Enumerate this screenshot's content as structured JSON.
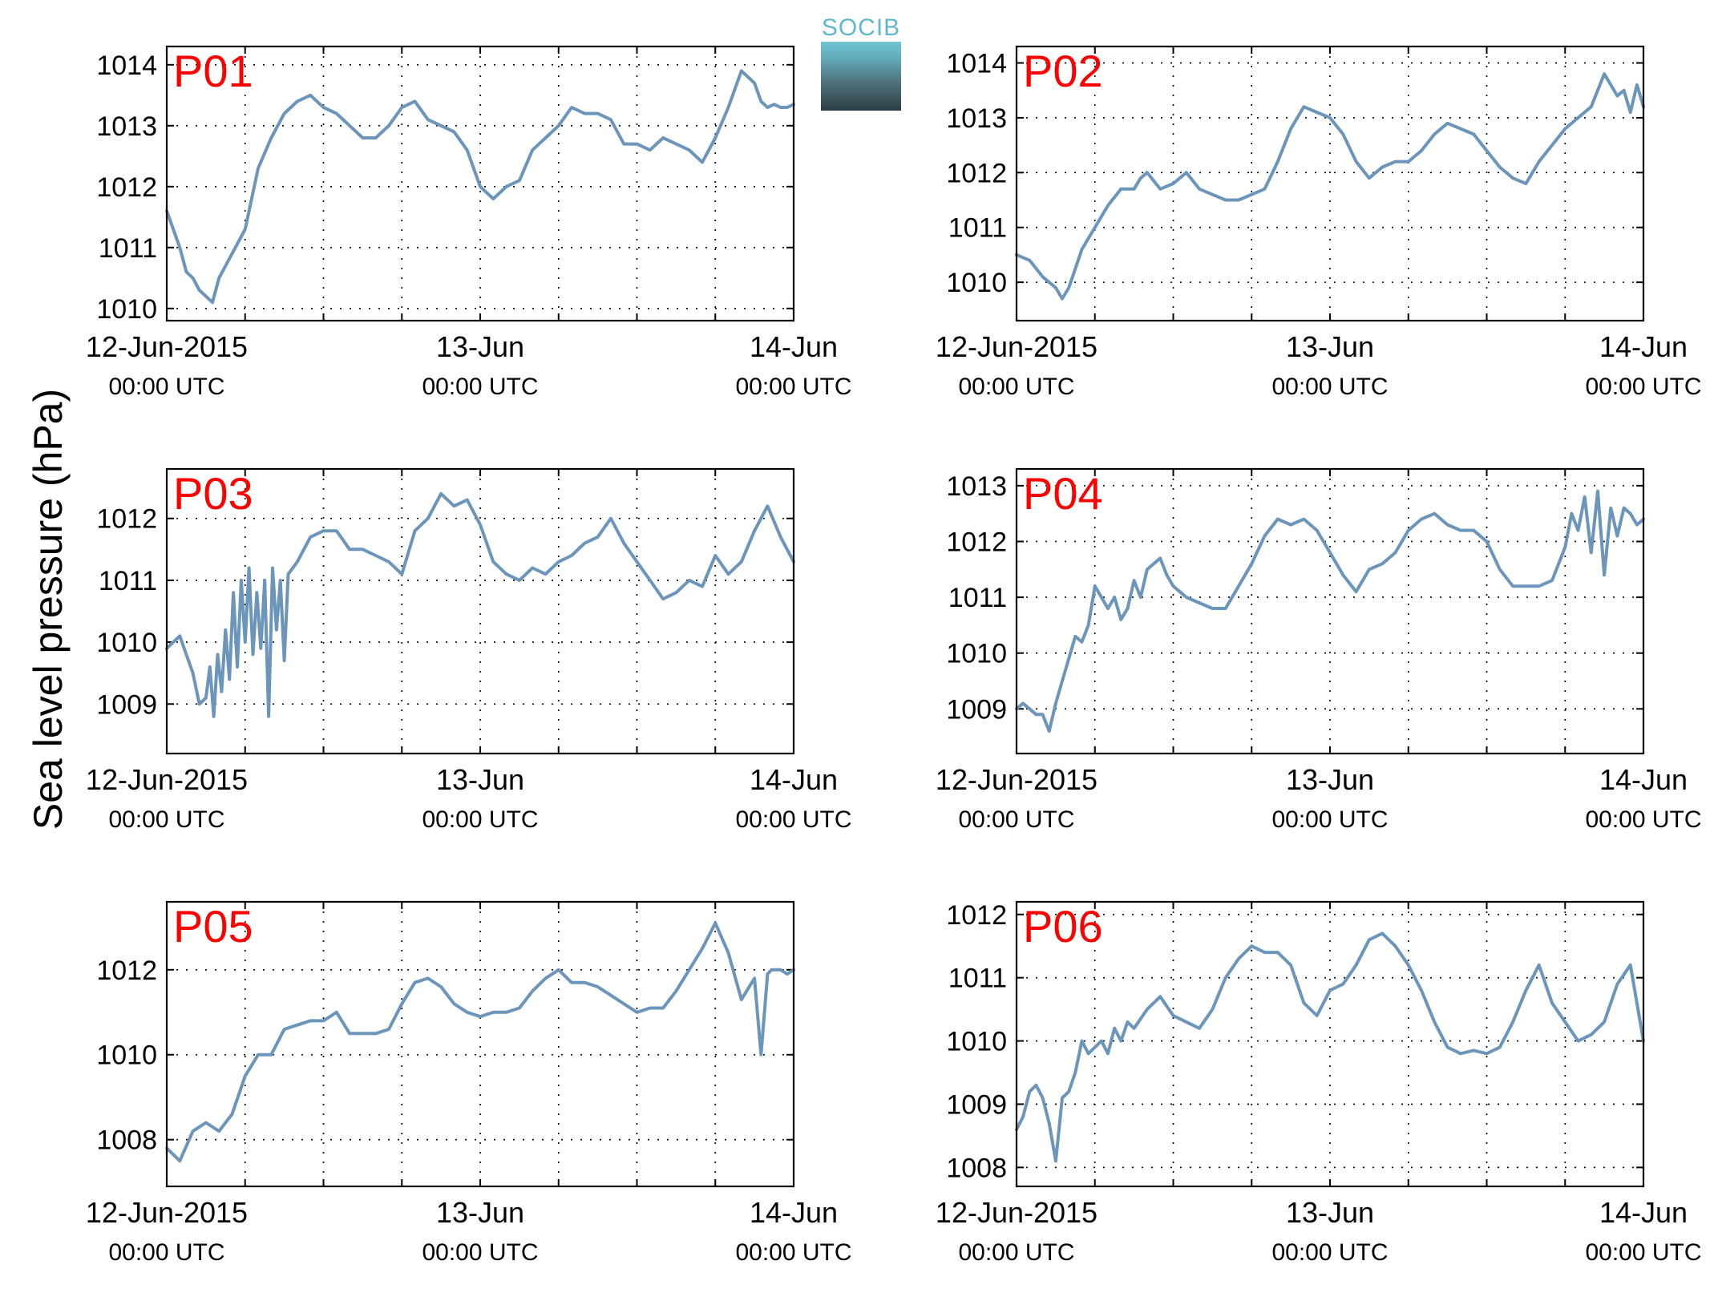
{
  "figure": {
    "ylabel": "Sea level pressure (hPa)",
    "logo_text": "SOCIB",
    "colors": {
      "line": "#6b95ba",
      "panel_label": "#ff0000",
      "grid": "#000000"
    }
  },
  "chart_data": [
    {
      "type": "line",
      "label": "P01",
      "xlim": [
        0,
        48
      ],
      "ylim": [
        1009.8,
        1014.3
      ],
      "yticks": [
        1010,
        1011,
        1012,
        1013,
        1014
      ],
      "xticks": [
        0,
        24,
        48
      ],
      "xtick_labels": [
        [
          "12-Jun-2015",
          "00:00 UTC"
        ],
        [
          "13-Jun",
          "00:00 UTC"
        ],
        [
          "14-Jun",
          "00:00 UTC"
        ]
      ],
      "grid": true,
      "series": [
        {
          "x": [
            0,
            1,
            1.5,
            2,
            2.5,
            3,
            3.5,
            4,
            5,
            6,
            7,
            8,
            9,
            10,
            11,
            12,
            13,
            14,
            15,
            16,
            17,
            18,
            19,
            20,
            21,
            22,
            23,
            24,
            25,
            26,
            27,
            28,
            29,
            30,
            31,
            32,
            33,
            34,
            35,
            36,
            37,
            38,
            39,
            40,
            41,
            42,
            43,
            44,
            45,
            45.5,
            46,
            46.5,
            47,
            47.5,
            48
          ],
          "y": [
            1011.6,
            1011.0,
            1010.6,
            1010.5,
            1010.3,
            1010.2,
            1010.1,
            1010.5,
            1010.9,
            1011.3,
            1012.3,
            1012.8,
            1013.2,
            1013.4,
            1013.5,
            1013.3,
            1013.2,
            1013.0,
            1012.8,
            1012.8,
            1013.0,
            1013.3,
            1013.4,
            1013.1,
            1013.0,
            1012.9,
            1012.6,
            1012.0,
            1011.8,
            1012.0,
            1012.1,
            1012.6,
            1012.8,
            1013.0,
            1013.3,
            1013.2,
            1013.2,
            1013.1,
            1012.7,
            1012.7,
            1012.6,
            1012.8,
            1012.7,
            1012.6,
            1012.4,
            1012.8,
            1013.3,
            1013.9,
            1013.7,
            1013.4,
            1013.3,
            1013.35,
            1013.3,
            1013.3,
            1013.35
          ]
        }
      ]
    },
    {
      "type": "line",
      "label": "P02",
      "xlim": [
        0,
        48
      ],
      "ylim": [
        1009.3,
        1014.3
      ],
      "yticks": [
        1010,
        1011,
        1012,
        1013,
        1014
      ],
      "xticks": [
        0,
        24,
        48
      ],
      "xtick_labels": [
        [
          "12-Jun-2015",
          "00:00 UTC"
        ],
        [
          "13-Jun",
          "00:00 UTC"
        ],
        [
          "14-Jun",
          "00:00 UTC"
        ]
      ],
      "grid": true,
      "series": [
        {
          "x": [
            0,
            1,
            2,
            3,
            3.5,
            4,
            5,
            6,
            7,
            8,
            9,
            9.5,
            10,
            11,
            12,
            13,
            14,
            15,
            16,
            17,
            18,
            19,
            20,
            21,
            22,
            23,
            24,
            25,
            26,
            27,
            28,
            29,
            30,
            31,
            32,
            33,
            34,
            35,
            36,
            37,
            38,
            39,
            40,
            41,
            42,
            43,
            44,
            45,
            45.5,
            46,
            46.5,
            47,
            47.5,
            48
          ],
          "y": [
            1010.5,
            1010.4,
            1010.1,
            1009.9,
            1009.7,
            1009.9,
            1010.6,
            1011.0,
            1011.4,
            1011.7,
            1011.7,
            1011.9,
            1012.0,
            1011.7,
            1011.8,
            1012.0,
            1011.7,
            1011.6,
            1011.5,
            1011.5,
            1011.6,
            1011.7,
            1012.2,
            1012.8,
            1013.2,
            1013.1,
            1013.0,
            1012.7,
            1012.2,
            1011.9,
            1012.1,
            1012.2,
            1012.2,
            1012.4,
            1012.7,
            1012.9,
            1012.8,
            1012.7,
            1012.4,
            1012.1,
            1011.9,
            1011.8,
            1012.2,
            1012.5,
            1012.8,
            1013.0,
            1013.2,
            1013.8,
            1013.6,
            1013.4,
            1013.5,
            1013.1,
            1013.6,
            1013.2
          ]
        }
      ]
    },
    {
      "type": "line",
      "label": "P03",
      "xlim": [
        0,
        48
      ],
      "ylim": [
        1008.2,
        1012.8
      ],
      "yticks": [
        1009,
        1010,
        1011,
        1012
      ],
      "xticks": [
        0,
        24,
        48
      ],
      "xtick_labels": [
        [
          "12-Jun-2015",
          "00:00 UTC"
        ],
        [
          "13-Jun",
          "00:00 UTC"
        ],
        [
          "14-Jun",
          "00:00 UTC"
        ]
      ],
      "grid": true,
      "series": [
        {
          "x": [
            0,
            0.5,
            1,
            1.5,
            2,
            2.5,
            3,
            3.3,
            3.6,
            3.9,
            4.2,
            4.5,
            4.8,
            5.1,
            5.4,
            5.7,
            6,
            6.3,
            6.6,
            6.9,
            7.2,
            7.5,
            7.8,
            8.1,
            8.4,
            8.7,
            9,
            9.3,
            10,
            11,
            12,
            13,
            14,
            15,
            16,
            17,
            18,
            19,
            20,
            21,
            22,
            23,
            24,
            25,
            26,
            27,
            28,
            29,
            30,
            31,
            32,
            33,
            34,
            35,
            36,
            37,
            38,
            39,
            40,
            41,
            42,
            43,
            44,
            45,
            46,
            47,
            48
          ],
          "y": [
            1009.9,
            1010.0,
            1010.1,
            1009.8,
            1009.5,
            1009.0,
            1009.1,
            1009.6,
            1008.8,
            1009.8,
            1009.2,
            1010.2,
            1009.4,
            1010.8,
            1009.6,
            1011.0,
            1010.0,
            1011.2,
            1009.8,
            1010.8,
            1009.9,
            1011.0,
            1008.8,
            1011.2,
            1010.2,
            1011.0,
            1009.7,
            1011.1,
            1011.3,
            1011.7,
            1011.8,
            1011.8,
            1011.5,
            1011.5,
            1011.4,
            1011.3,
            1011.1,
            1011.8,
            1012.0,
            1012.4,
            1012.2,
            1012.3,
            1011.9,
            1011.3,
            1011.1,
            1011.0,
            1011.2,
            1011.1,
            1011.3,
            1011.4,
            1011.6,
            1011.7,
            1012.0,
            1011.6,
            1011.3,
            1011.0,
            1010.7,
            1010.8,
            1011.0,
            1010.9,
            1011.4,
            1011.1,
            1011.3,
            1011.8,
            1012.2,
            1011.7,
            1011.3
          ]
        }
      ]
    },
    {
      "type": "line",
      "label": "P04",
      "xlim": [
        0,
        48
      ],
      "ylim": [
        1008.2,
        1013.3
      ],
      "yticks": [
        1009,
        1010,
        1011,
        1012,
        1013
      ],
      "xticks": [
        0,
        24,
        48
      ],
      "xtick_labels": [
        [
          "12-Jun-2015",
          "00:00 UTC"
        ],
        [
          "13-Jun",
          "00:00 UTC"
        ],
        [
          "14-Jun",
          "00:00 UTC"
        ]
      ],
      "grid": true,
      "series": [
        {
          "x": [
            0,
            0.5,
            1,
            1.5,
            2,
            2.5,
            3,
            3.5,
            4,
            4.5,
            5,
            5.5,
            6,
            6.5,
            7,
            7.5,
            8,
            8.5,
            9,
            9.5,
            10,
            10.5,
            11,
            11.5,
            12,
            13,
            14,
            15,
            16,
            17,
            18,
            19,
            20,
            21,
            22,
            23,
            24,
            25,
            26,
            27,
            28,
            29,
            30,
            31,
            32,
            33,
            34,
            35,
            36,
            37,
            38,
            39,
            40,
            41,
            42,
            42.5,
            43,
            43.5,
            44,
            44.5,
            45,
            45.5,
            46,
            46.5,
            47,
            47.5,
            48
          ],
          "y": [
            1009.0,
            1009.1,
            1009.0,
            1008.9,
            1008.9,
            1008.6,
            1009.1,
            1009.5,
            1009.9,
            1010.3,
            1010.2,
            1010.5,
            1011.2,
            1011.0,
            1010.8,
            1011.0,
            1010.6,
            1010.8,
            1011.3,
            1011.0,
            1011.5,
            1011.6,
            1011.7,
            1011.4,
            1011.2,
            1011.0,
            1010.9,
            1010.8,
            1010.8,
            1011.2,
            1011.6,
            1012.1,
            1012.4,
            1012.3,
            1012.4,
            1012.2,
            1011.8,
            1011.4,
            1011.1,
            1011.5,
            1011.6,
            1011.8,
            1012.2,
            1012.4,
            1012.5,
            1012.3,
            1012.2,
            1012.2,
            1012.0,
            1011.5,
            1011.2,
            1011.2,
            1011.2,
            1011.3,
            1011.9,
            1012.5,
            1012.2,
            1012.8,
            1011.8,
            1012.9,
            1011.4,
            1012.6,
            1012.1,
            1012.6,
            1012.5,
            1012.3,
            1012.4
          ]
        }
      ]
    },
    {
      "type": "line",
      "label": "P05",
      "xlim": [
        0,
        48
      ],
      "ylim": [
        1006.9,
        1013.6
      ],
      "yticks": [
        1008,
        1010,
        1012
      ],
      "xticks": [
        0,
        24,
        48
      ],
      "xtick_labels": [
        [
          "12-Jun-2015",
          "00:00 UTC"
        ],
        [
          "13-Jun",
          "00:00 UTC"
        ],
        [
          "14-Jun",
          "00:00 UTC"
        ]
      ],
      "grid": true,
      "series": [
        {
          "x": [
            0,
            1,
            2,
            3,
            4,
            5,
            6,
            7,
            8,
            9,
            10,
            11,
            12,
            13,
            14,
            15,
            16,
            17,
            18,
            19,
            20,
            21,
            22,
            23,
            24,
            25,
            26,
            27,
            28,
            29,
            30,
            31,
            32,
            33,
            34,
            35,
            36,
            37,
            38,
            39,
            40,
            41,
            42,
            43,
            44,
            45,
            45.5,
            46,
            46.3,
            46.6,
            47,
            47.5,
            48
          ],
          "y": [
            1007.8,
            1007.5,
            1008.2,
            1008.4,
            1008.2,
            1008.6,
            1009.5,
            1010.0,
            1010.0,
            1010.6,
            1010.7,
            1010.8,
            1010.8,
            1011.0,
            1010.5,
            1010.5,
            1010.5,
            1010.6,
            1011.2,
            1011.7,
            1011.8,
            1011.6,
            1011.2,
            1011.0,
            1010.9,
            1011.0,
            1011.0,
            1011.1,
            1011.5,
            1011.8,
            1012.0,
            1011.7,
            1011.7,
            1011.6,
            1011.4,
            1011.2,
            1011.0,
            1011.1,
            1011.1,
            1011.5,
            1012.0,
            1012.5,
            1013.1,
            1012.4,
            1011.3,
            1011.8,
            1010.0,
            1011.9,
            1012.0,
            1012.0,
            1012.0,
            1011.9,
            1012.0
          ]
        }
      ]
    },
    {
      "type": "line",
      "label": "P06",
      "xlim": [
        0,
        48
      ],
      "ylim": [
        1007.7,
        1012.2
      ],
      "yticks": [
        1008,
        1009,
        1010,
        1011,
        1012
      ],
      "xticks": [
        0,
        24,
        48
      ],
      "xtick_labels": [
        [
          "12-Jun-2015",
          "00:00 UTC"
        ],
        [
          "13-Jun",
          "00:00 UTC"
        ],
        [
          "14-Jun",
          "00:00 UTC"
        ]
      ],
      "grid": true,
      "series": [
        {
          "x": [
            0,
            0.5,
            1,
            1.5,
            2,
            2.5,
            3,
            3.5,
            4,
            4.5,
            5,
            5.5,
            6,
            6.5,
            7,
            7.5,
            8,
            8.5,
            9,
            10,
            11,
            12,
            13,
            14,
            15,
            16,
            17,
            18,
            19,
            20,
            21,
            22,
            23,
            24,
            25,
            26,
            27,
            28,
            29,
            30,
            31,
            32,
            33,
            34,
            35,
            36,
            37,
            38,
            39,
            40,
            41,
            42,
            43,
            44,
            45,
            46,
            47,
            48
          ],
          "y": [
            1008.6,
            1008.8,
            1009.2,
            1009.3,
            1009.1,
            1008.7,
            1008.1,
            1009.1,
            1009.2,
            1009.5,
            1010.0,
            1009.8,
            1009.9,
            1010.0,
            1009.8,
            1010.2,
            1010.0,
            1010.3,
            1010.2,
            1010.5,
            1010.7,
            1010.4,
            1010.3,
            1010.2,
            1010.5,
            1011.0,
            1011.3,
            1011.5,
            1011.4,
            1011.4,
            1011.2,
            1010.6,
            1010.4,
            1010.8,
            1010.9,
            1011.2,
            1011.6,
            1011.7,
            1011.5,
            1011.2,
            1010.8,
            1010.3,
            1009.9,
            1009.8,
            1009.85,
            1009.8,
            1009.9,
            1010.3,
            1010.8,
            1011.2,
            1010.6,
            1010.3,
            1010.0,
            1010.1,
            1010.3,
            1010.9,
            1011.2,
            1010.0
          ]
        }
      ]
    }
  ]
}
